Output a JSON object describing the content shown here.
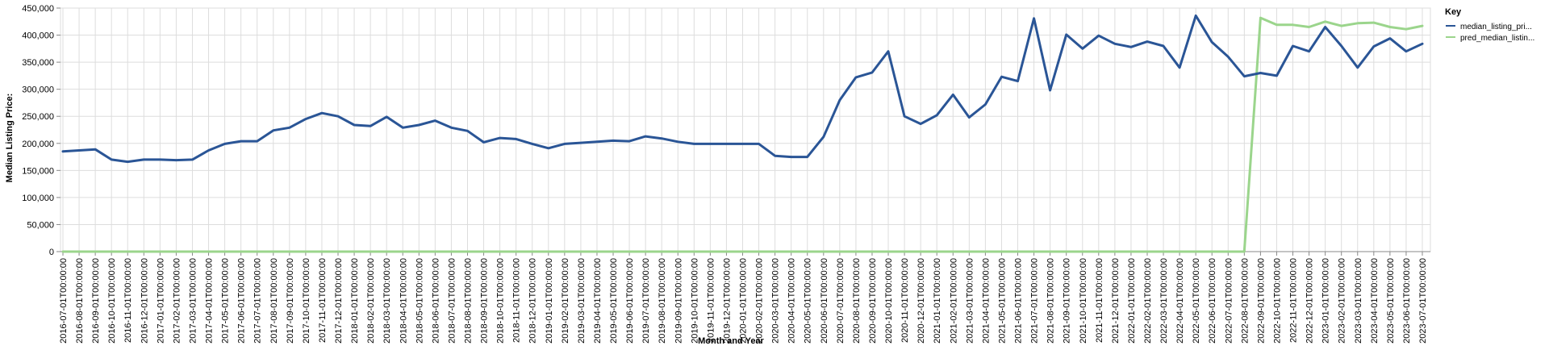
{
  "chart_data": {
    "type": "line",
    "xlabel": "Month and Year",
    "ylabel": "Median Listing Price:",
    "ylim": [
      0,
      450000
    ],
    "y_ticks": [
      "0",
      "50,000",
      "100,000",
      "150,000",
      "200,000",
      "250,000",
      "300,000",
      "350,000",
      "400,000",
      "450,000"
    ],
    "grid": true,
    "legend": {
      "title": "Key",
      "position": "top-right"
    },
    "x": [
      "2016-07-01T00:00:00",
      "2016-08-01T00:00:00",
      "2016-09-01T00:00:00",
      "2016-10-01T00:00:00",
      "2016-11-01T00:00:00",
      "2016-12-01T00:00:00",
      "2017-01-01T00:00:00",
      "2017-02-01T00:00:00",
      "2017-03-01T00:00:00",
      "2017-04-01T00:00:00",
      "2017-05-01T00:00:00",
      "2017-06-01T00:00:00",
      "2017-07-01T00:00:00",
      "2017-08-01T00:00:00",
      "2017-09-01T00:00:00",
      "2017-10-01T00:00:00",
      "2017-11-01T00:00:00",
      "2017-12-01T00:00:00",
      "2018-01-01T00:00:00",
      "2018-02-01T00:00:00",
      "2018-03-01T00:00:00",
      "2018-04-01T00:00:00",
      "2018-05-01T00:00:00",
      "2018-06-01T00:00:00",
      "2018-07-01T00:00:00",
      "2018-08-01T00:00:00",
      "2018-09-01T00:00:00",
      "2018-10-01T00:00:00",
      "2018-11-01T00:00:00",
      "2018-12-01T00:00:00",
      "2019-01-01T00:00:00",
      "2019-02-01T00:00:00",
      "2019-03-01T00:00:00",
      "2019-04-01T00:00:00",
      "2019-05-01T00:00:00",
      "2019-06-01T00:00:00",
      "2019-07-01T00:00:00",
      "2019-08-01T00:00:00",
      "2019-09-01T00:00:00",
      "2019-10-01T00:00:00",
      "2019-11-01T00:00:00",
      "2019-12-01T00:00:00",
      "2020-01-01T00:00:00",
      "2020-02-01T00:00:00",
      "2020-03-01T00:00:00",
      "2020-04-01T00:00:00",
      "2020-05-01T00:00:00",
      "2020-06-01T00:00:00",
      "2020-07-01T00:00:00",
      "2020-08-01T00:00:00",
      "2020-09-01T00:00:00",
      "2020-10-01T00:00:00",
      "2020-11-01T00:00:00",
      "2020-12-01T00:00:00",
      "2021-01-01T00:00:00",
      "2021-02-01T00:00:00",
      "2021-03-01T00:00:00",
      "2021-04-01T00:00:00",
      "2021-05-01T00:00:00",
      "2021-06-01T00:00:00",
      "2021-07-01T00:00:00",
      "2021-08-01T00:00:00",
      "2021-09-01T00:00:00",
      "2021-10-01T00:00:00",
      "2021-11-01T00:00:00",
      "2021-12-01T00:00:00",
      "2022-01-01T00:00:00",
      "2022-02-01T00:00:00",
      "2022-03-01T00:00:00",
      "2022-04-01T00:00:00",
      "2022-05-01T00:00:00",
      "2022-06-01T00:00:00",
      "2022-07-01T00:00:00",
      "2022-08-01T00:00:00",
      "2022-09-01T00:00:00",
      "2022-10-01T00:00:00",
      "2022-11-01T00:00:00",
      "2022-12-01T00:00:00",
      "2023-01-01T00:00:00",
      "2023-02-01T00:00:00",
      "2023-03-01T00:00:00",
      "2023-04-01T00:00:00",
      "2023-05-01T00:00:00",
      "2023-06-01T00:00:00",
      "2023-07-01T00:00:00"
    ],
    "series": [
      {
        "name": "median_listing_pri...",
        "color": "#2a5596",
        "values": [
          185000,
          187000,
          189000,
          170000,
          166000,
          170000,
          170000,
          169000,
          170000,
          187000,
          199000,
          204000,
          204000,
          224000,
          229000,
          245000,
          256000,
          250000,
          234000,
          232000,
          249000,
          229000,
          234000,
          242000,
          229000,
          223000,
          202000,
          210000,
          208000,
          199000,
          191000,
          199000,
          201000,
          203000,
          205000,
          204000,
          213000,
          209000,
          203000,
          199000,
          199000,
          199000,
          199000,
          199000,
          177000,
          175000,
          175000,
          212000,
          280000,
          322000,
          331000,
          370000,
          250000,
          236000,
          252000,
          290000,
          248000,
          272000,
          323000,
          315000,
          431000,
          298000,
          401000,
          375000,
          399000,
          384000,
          378000,
          388000,
          380000,
          340000,
          436000,
          387000,
          360000,
          324000,
          330000,
          325000,
          380000,
          370000,
          415000,
          380000,
          340000,
          379000,
          394000,
          370000,
          384000
        ]
      },
      {
        "name": "pred_median_listin...",
        "color": "#9bd58c",
        "values": [
          0,
          0,
          0,
          0,
          0,
          0,
          0,
          0,
          0,
          0,
          0,
          0,
          0,
          0,
          0,
          0,
          0,
          0,
          0,
          0,
          0,
          0,
          0,
          0,
          0,
          0,
          0,
          0,
          0,
          0,
          0,
          0,
          0,
          0,
          0,
          0,
          0,
          0,
          0,
          0,
          0,
          0,
          0,
          0,
          0,
          0,
          0,
          0,
          0,
          0,
          0,
          0,
          0,
          0,
          0,
          0,
          0,
          0,
          0,
          0,
          0,
          0,
          0,
          0,
          0,
          0,
          0,
          0,
          0,
          0,
          0,
          0,
          0,
          0,
          432000,
          419000,
          419000,
          415000,
          425000,
          417000,
          422000,
          423000,
          415000,
          411000,
          417000
        ]
      }
    ]
  }
}
